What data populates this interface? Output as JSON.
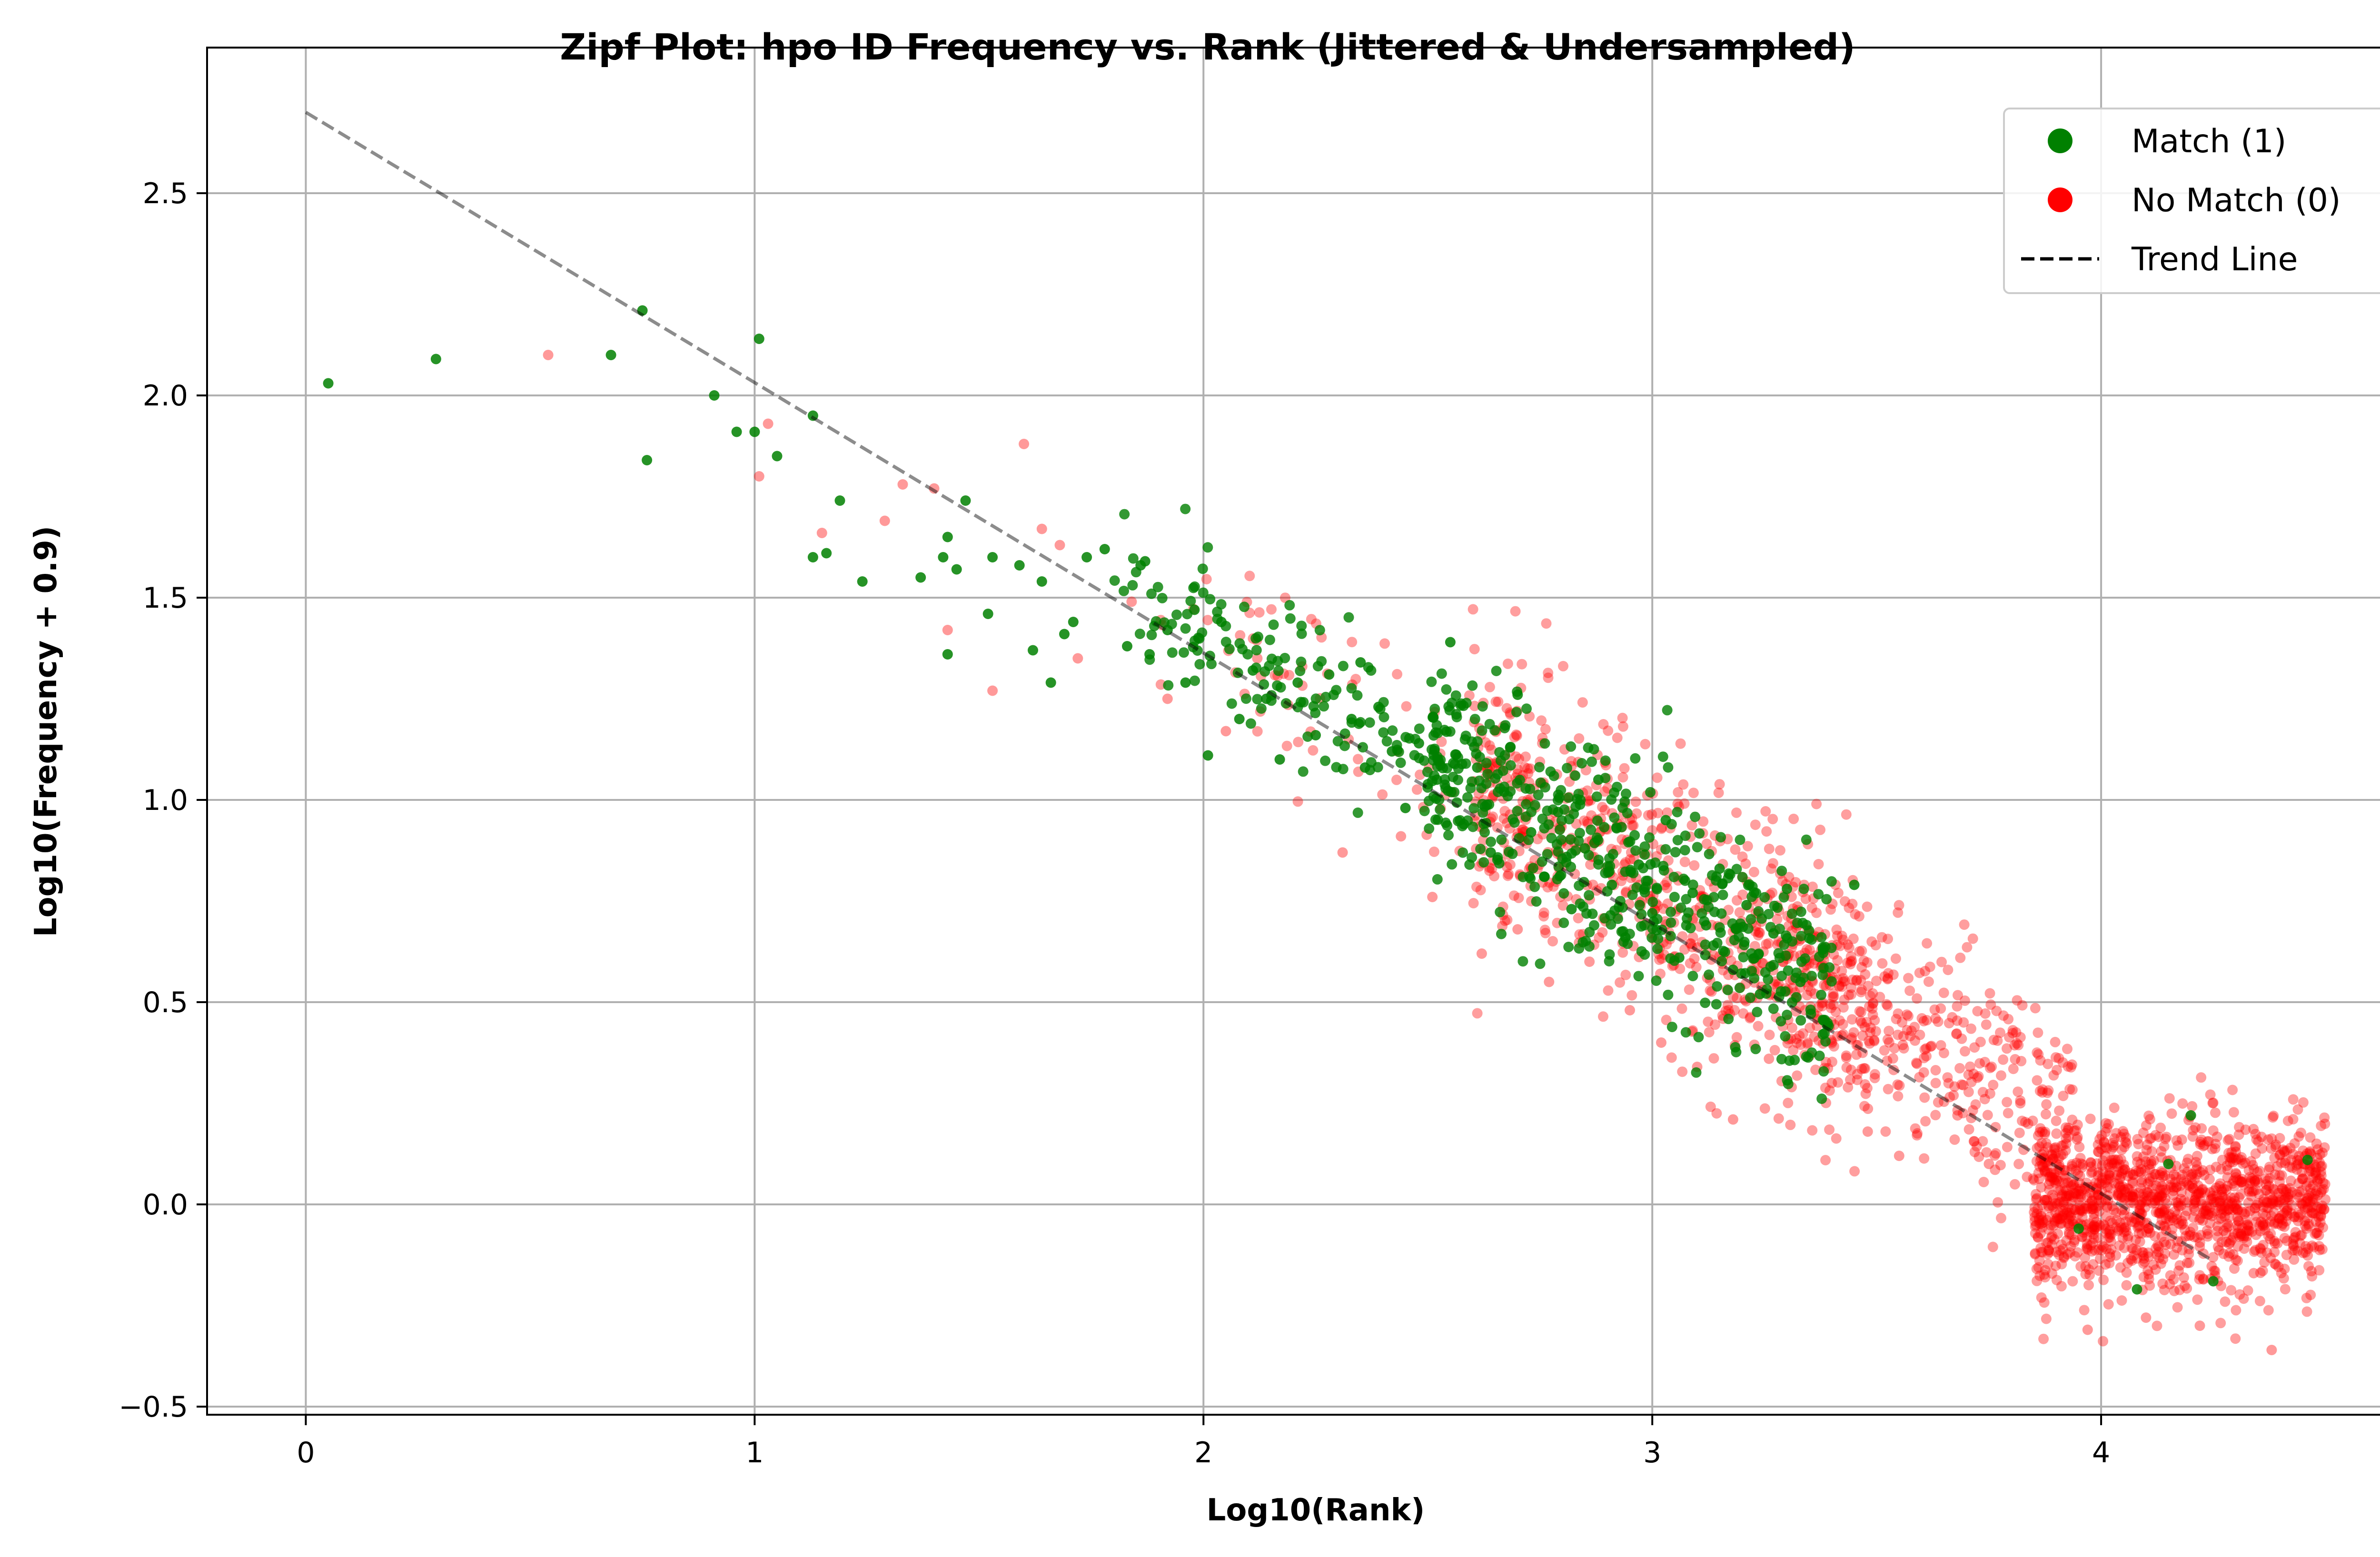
{
  "chart_data": {
    "type": "scatter",
    "title": "Zipf Plot: hpo ID Frequency vs. Rank (Jittered & Undersampled)",
    "xlabel": "Log10(Rank)",
    "ylabel": "Log10(Frequency + 0.9)",
    "xlim": [
      -0.22,
      4.72
    ],
    "ylim": [
      -0.52,
      2.86
    ],
    "xticks": [
      0,
      1,
      2,
      3,
      4
    ],
    "xtick_labels": [
      "0",
      "1",
      "2",
      "3",
      "4"
    ],
    "yticks": [
      -0.5,
      0.0,
      0.5,
      1.0,
      1.5,
      2.0,
      2.5
    ],
    "ytick_labels": [
      "−0.5",
      "0.0",
      "0.5",
      "1.0",
      "1.5",
      "2.0",
      "2.5"
    ],
    "grid": true,
    "legend_position": "top-right",
    "legend": [
      {
        "label": "Match (1)",
        "marker": "circle",
        "color": "#008000"
      },
      {
        "label": "No Match (0)",
        "marker": "circle",
        "color": "#ff0000"
      },
      {
        "label": "Trend Line",
        "marker": "dashed-line",
        "color": "#000000"
      }
    ],
    "series": [
      {
        "name": "Match (1)",
        "color": "#008000",
        "points": [
          [
            0.05,
            2.03
          ],
          [
            0.29,
            2.09
          ],
          [
            0.68,
            2.1
          ],
          [
            0.75,
            2.21
          ],
          [
            0.76,
            1.84
          ],
          [
            0.91,
            2.0
          ],
          [
            0.96,
            1.91
          ],
          [
            1.0,
            1.91
          ],
          [
            1.01,
            2.14
          ],
          [
            1.05,
            1.85
          ],
          [
            1.13,
            1.95
          ],
          [
            1.13,
            1.6
          ],
          [
            1.16,
            1.61
          ],
          [
            1.19,
            1.74
          ],
          [
            1.24,
            1.54
          ],
          [
            1.37,
            1.55
          ],
          [
            1.42,
            1.6
          ],
          [
            1.43,
            1.65
          ],
          [
            1.43,
            1.36
          ],
          [
            1.45,
            1.57
          ],
          [
            1.47,
            1.74
          ],
          [
            1.52,
            1.46
          ],
          [
            1.53,
            1.6
          ],
          [
            1.59,
            1.58
          ],
          [
            1.62,
            1.37
          ],
          [
            1.64,
            1.54
          ],
          [
            1.66,
            1.29
          ],
          [
            1.69,
            1.41
          ],
          [
            1.71,
            1.44
          ],
          [
            1.74,
            1.6
          ],
          [
            1.78,
            1.62
          ],
          [
            1.83,
            1.38
          ],
          [
            1.86,
            1.58
          ],
          [
            1.87,
            1.59
          ],
          [
            1.88,
            1.36
          ],
          [
            1.92,
            1.42
          ],
          [
            1.96,
            1.29
          ],
          [
            1.98,
            1.47
          ],
          [
            2.01,
            1.11
          ],
          [
            2.04,
            1.44
          ],
          [
            2.08,
            1.2
          ],
          [
            2.11,
            1.32
          ],
          [
            2.14,
            1.25
          ],
          [
            2.17,
            1.1
          ],
          [
            2.21,
            1.29
          ],
          [
            2.25,
            1.16
          ],
          [
            2.28,
            1.31
          ],
          [
            2.33,
            1.2
          ],
          [
            2.36,
            1.08
          ],
          [
            2.39,
            1.23
          ],
          [
            2.42,
            1.12
          ],
          [
            2.45,
            0.98
          ],
          [
            2.48,
            1.14
          ],
          [
            2.52,
            1.05
          ],
          [
            2.55,
            1.39
          ],
          [
            2.58,
            0.94
          ],
          [
            2.61,
            1.08
          ],
          [
            2.64,
            0.87
          ],
          [
            2.67,
            1.02
          ],
          [
            2.7,
            1.26
          ],
          [
            2.73,
            0.92
          ],
          [
            2.76,
            0.81
          ],
          [
            2.79,
            0.97
          ],
          [
            2.82,
            0.73
          ],
          [
            2.85,
            0.88
          ],
          [
            2.88,
            1.05
          ],
          [
            2.91,
            0.79
          ],
          [
            2.94,
            0.66
          ],
          [
            2.97,
            0.84
          ],
          [
            3.0,
            0.72
          ],
          [
            3.03,
            0.95
          ],
          [
            3.06,
            0.61
          ],
          [
            3.09,
            0.77
          ],
          [
            3.12,
            0.69
          ],
          [
            3.15,
            0.83
          ],
          [
            3.18,
            0.58
          ],
          [
            3.21,
            0.74
          ],
          [
            3.24,
            0.52
          ],
          [
            3.27,
            0.67
          ],
          [
            3.3,
            0.78
          ],
          [
            3.33,
            0.55
          ],
          [
            3.38,
            0.63
          ],
          [
            3.45,
            0.79
          ],
          [
            3.95,
            -0.06
          ],
          [
            4.08,
            -0.21
          ],
          [
            4.15,
            0.1
          ],
          [
            4.2,
            0.22
          ],
          [
            4.25,
            -0.19
          ],
          [
            4.46,
            0.11
          ],
          [
            2.35,
            1.34
          ]
        ]
      },
      {
        "name": "No Match (0)",
        "color": "#ff0000",
        "points": [
          [
            0.54,
            2.1
          ],
          [
            1.01,
            1.8
          ],
          [
            1.03,
            1.93
          ],
          [
            1.15,
            1.66
          ],
          [
            1.29,
            1.69
          ],
          [
            1.33,
            1.78
          ],
          [
            1.4,
            1.77
          ],
          [
            1.43,
            1.42
          ],
          [
            1.53,
            1.27
          ],
          [
            1.6,
            1.88
          ],
          [
            1.64,
            1.67
          ],
          [
            1.68,
            1.63
          ],
          [
            1.72,
            1.35
          ],
          [
            1.84,
            1.49
          ],
          [
            1.92,
            1.25
          ],
          [
            2.05,
            1.17
          ],
          [
            2.12,
            1.35
          ],
          [
            2.22,
            1.33
          ],
          [
            2.31,
            0.87
          ],
          [
            2.44,
            0.91
          ],
          [
            2.51,
            0.76
          ],
          [
            2.62,
            0.62
          ],
          [
            2.7,
            0.68
          ],
          [
            2.77,
            0.55
          ],
          [
            2.86,
            0.6
          ],
          [
            2.95,
            0.48
          ],
          [
            3.02,
            0.4
          ],
          [
            3.1,
            0.34
          ],
          [
            3.18,
            0.21
          ],
          [
            3.26,
            0.36
          ],
          [
            3.34,
            0.48
          ],
          [
            3.4,
            0.3
          ],
          [
            3.48,
            0.18
          ],
          [
            3.55,
            0.12
          ],
          [
            3.62,
            0.39
          ],
          [
            3.68,
            0.22
          ],
          [
            3.75,
            0.1
          ],
          [
            3.82,
            0.25
          ],
          [
            3.88,
            0.08
          ],
          [
            3.93,
            -0.05
          ],
          [
            3.97,
            -0.31
          ],
          [
            4.02,
            -0.13
          ],
          [
            4.06,
            0.07
          ],
          [
            4.1,
            -0.28
          ],
          [
            4.14,
            -0.02
          ],
          [
            4.18,
            0.16
          ],
          [
            4.22,
            -0.3
          ],
          [
            4.26,
            -0.08
          ],
          [
            4.3,
            0.13
          ],
          [
            4.34,
            -0.17
          ],
          [
            4.38,
            -0.36
          ],
          [
            4.42,
            0.04
          ],
          [
            4.45,
            -0.12
          ],
          [
            4.49,
            0.03
          ],
          [
            4.48,
            0.15
          ]
        ],
        "dense_regions": [
          {
            "x": [
              1.9,
              2.8
            ],
            "intercept": 2.7,
            "slope": -0.64,
            "spread": 0.12,
            "count": 90
          },
          {
            "x": [
              2.6,
              3.5
            ],
            "intercept": 2.7,
            "slope": -0.64,
            "spread": 0.16,
            "count": 700
          },
          {
            "x": [
              3.3,
              3.95
            ],
            "intercept": 2.7,
            "slope": -0.64,
            "spread": 0.14,
            "count": 350
          },
          {
            "x": [
              3.85,
              4.5
            ],
            "intercept": 0.0,
            "slope": 0.0,
            "spread": 0.1,
            "count": 1300
          }
        ]
      }
    ],
    "extra_match_regions": [
      {
        "x": [
          1.8,
          2.6
        ],
        "intercept": 2.7,
        "slope": -0.64,
        "spread": 0.1,
        "count": 150
      },
      {
        "x": [
          2.5,
          3.4
        ],
        "intercept": 2.7,
        "slope": -0.64,
        "spread": 0.13,
        "count": 500
      }
    ],
    "trend_line": {
      "x": [
        0.0,
        4.25
      ],
      "y": [
        2.7,
        -0.14
      ],
      "style": "dashed",
      "color": "#000000"
    }
  }
}
